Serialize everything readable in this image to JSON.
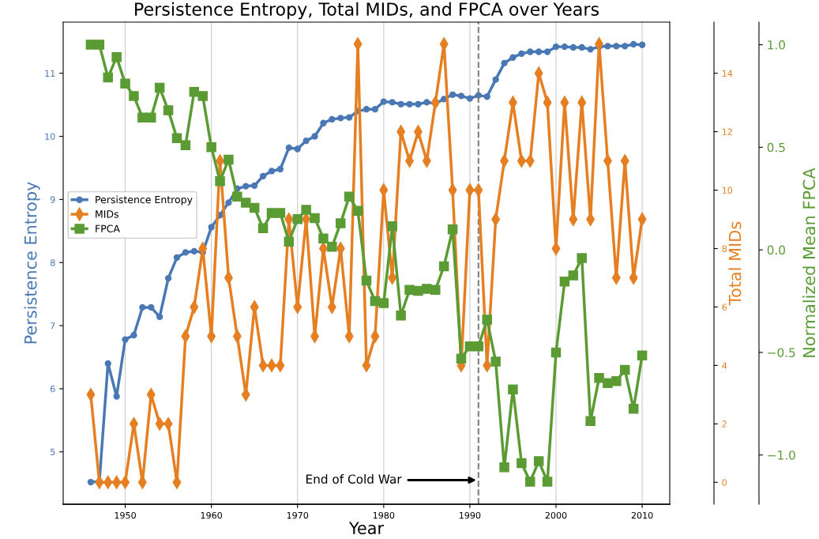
{
  "chart_data": {
    "type": "line",
    "title": "Persistence Entropy, Total MIDs, and FPCA over Years",
    "xlabel": "Year",
    "ylabel": "Persistence Entropy",
    "y2label": "Total MIDs",
    "y3label": "Normalized Mean FPCA",
    "x": [
      1946,
      1947,
      1948,
      1949,
      1950,
      1951,
      1952,
      1953,
      1954,
      1955,
      1956,
      1957,
      1958,
      1959,
      1960,
      1961,
      1962,
      1963,
      1964,
      1965,
      1966,
      1967,
      1968,
      1969,
      1970,
      1971,
      1972,
      1973,
      1974,
      1975,
      1976,
      1977,
      1978,
      1979,
      1980,
      1981,
      1982,
      1983,
      1984,
      1985,
      1986,
      1987,
      1988,
      1989,
      1990,
      1991,
      1992,
      1993,
      1994,
      1995,
      1996,
      1997,
      1998,
      1999,
      2000,
      2001,
      2002,
      2003,
      2004,
      2005,
      2006,
      2007,
      2008,
      2009,
      2010
    ],
    "series": [
      {
        "name": "Persistence Entropy",
        "color": "#4a78b5",
        "marker": "circle",
        "axis": "y",
        "values": [
          4.52,
          4.53,
          6.4,
          5.88,
          6.78,
          6.85,
          7.29,
          7.29,
          7.14,
          7.75,
          8.08,
          8.16,
          8.18,
          8.16,
          8.56,
          8.75,
          8.95,
          9.17,
          9.21,
          9.22,
          9.37,
          9.45,
          9.48,
          9.82,
          9.8,
          9.93,
          10.0,
          10.21,
          10.27,
          10.29,
          10.3,
          10.4,
          10.43,
          10.43,
          10.55,
          10.54,
          10.51,
          10.51,
          10.51,
          10.54,
          10.52,
          10.59,
          10.66,
          10.64,
          10.6,
          10.65,
          10.63,
          10.9,
          11.16,
          11.25,
          11.31,
          11.34,
          11.34,
          11.34,
          11.42,
          11.42,
          11.41,
          11.41,
          11.38,
          11.42,
          11.43,
          11.43,
          11.43,
          11.46,
          11.45
        ]
      },
      {
        "name": "MIDs",
        "color": "#e57f22",
        "marker": "diamond",
        "axis": "y2",
        "values": [
          3,
          0,
          0,
          0,
          0,
          2,
          0,
          3,
          2,
          2,
          0,
          5,
          6,
          8,
          5,
          11,
          7,
          5,
          3,
          6,
          4,
          4,
          4,
          9,
          6,
          9,
          5,
          8,
          6,
          8,
          5,
          15,
          4,
          5,
          10,
          7,
          12,
          11,
          12,
          11,
          13,
          15,
          10,
          4,
          10,
          10,
          4,
          9,
          11,
          13,
          11,
          11,
          14,
          13,
          8,
          13,
          9,
          13,
          9,
          15,
          11,
          7,
          11,
          7,
          9
        ]
      },
      {
        "name": "FPCA",
        "color": "#5b9b34",
        "marker": "square",
        "axis": "y3",
        "values": [
          1.0,
          1.0,
          0.84,
          0.94,
          0.81,
          0.75,
          0.645,
          0.645,
          0.79,
          0.68,
          0.545,
          0.51,
          0.77,
          0.75,
          0.5,
          0.335,
          0.44,
          0.26,
          0.23,
          0.205,
          0.105,
          0.18,
          0.18,
          0.04,
          0.15,
          0.195,
          0.155,
          0.055,
          0.015,
          0.13,
          0.26,
          0.19,
          -0.15,
          -0.25,
          -0.26,
          0.115,
          -0.32,
          -0.195,
          -0.2,
          -0.19,
          -0.195,
          -0.08,
          0.1,
          -0.53,
          -0.47,
          -0.47,
          -0.34,
          -0.545,
          -1.06,
          -0.68,
          -1.04,
          -1.13,
          -1.03,
          -1.13,
          -0.5,
          -0.155,
          -0.125,
          -0.04,
          -0.835,
          -0.625,
          -0.65,
          -0.64,
          -0.585,
          -0.775,
          -0.515
        ]
      }
    ],
    "xlim": [
      1942.8,
      2013.2
    ],
    "xticks": [
      1950,
      1960,
      1970,
      1980,
      1990,
      2000,
      2010
    ],
    "ylim": [
      4.17,
      11.81
    ],
    "yticks": [
      5,
      6,
      7,
      8,
      9,
      10,
      11
    ],
    "y2lim": [
      -0.75,
      15.75
    ],
    "y2ticks": [
      0,
      2,
      4,
      6,
      8,
      10,
      12,
      14
    ],
    "y3lim": [
      -1.24,
      1.11
    ],
    "y3ticks": [
      {
        "value": -1.0,
        "label": "−1.0"
      },
      {
        "value": -0.5,
        "label": "−0.5"
      },
      {
        "value": 0.0,
        "label": "0.0"
      },
      {
        "value": 0.5,
        "label": "0.5"
      },
      {
        "value": 1.0,
        "label": "1.0"
      }
    ],
    "ref_lines": [
      {
        "axis": "x",
        "value": 1991,
        "color": "#808080",
        "line_style": "dashed"
      }
    ],
    "annotations": [
      "End of Cold War"
    ],
    "grid": "x",
    "legend": "center left"
  }
}
